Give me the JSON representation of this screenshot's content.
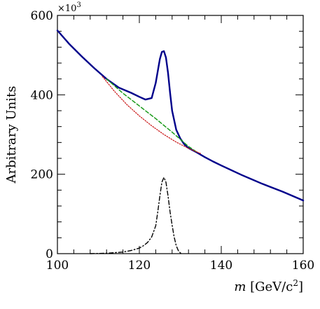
{
  "chart_data": {
    "type": "line",
    "title": "",
    "xlabel": {
      "prefix": "m",
      "units": "[GeV/c",
      "superscript": "2",
      "suffix": "]"
    },
    "ylabel": "Arbitrary Units",
    "y_multiplier": {
      "base": "×10",
      "exponent": "3"
    },
    "xlim": [
      100,
      160
    ],
    "ylim": [
      0,
      600
    ],
    "x_ticks": [
      100,
      120,
      140,
      160
    ],
    "y_ticks": [
      0,
      200,
      400,
      600
    ],
    "x_tick_labels": [
      "100",
      "120",
      "140",
      "160"
    ],
    "y_tick_labels": [
      "0",
      "200",
      "400",
      "600"
    ],
    "grid": false,
    "legend": "none",
    "series": [
      {
        "style": "solid",
        "color": "#00008b",
        "x": [
          100,
          103,
          106,
          109,
          112,
          115,
          118,
          120,
          121.5,
          123,
          124,
          125,
          125.5,
          126,
          126.5,
          127,
          127.5,
          128,
          129,
          130,
          131,
          132,
          134,
          136,
          138,
          140,
          145,
          150,
          155,
          160
        ],
        "y": [
          562,
          527,
          496,
          467,
          440,
          418,
          405,
          395,
          388,
          392,
          430,
          490,
          508,
          510,
          494,
          455,
          405,
          360,
          312,
          290,
          275,
          266,
          255,
          243,
          232,
          222,
          198,
          176,
          156,
          134
        ]
      },
      {
        "style": "dashed",
        "color": "#1a9a1a",
        "x": [
          112,
          114,
          116,
          118,
          120,
          122,
          124,
          126,
          128,
          130,
          132,
          134
        ],
        "y": [
          440,
          422,
          404,
          388,
          372,
          356,
          340,
          323,
          306,
          288,
          270,
          256
        ]
      },
      {
        "style": "dotted",
        "color": "#cc2222",
        "x": [
          111,
          114,
          117,
          120,
          123,
          126,
          129,
          132,
          135
        ],
        "y": [
          446,
          408,
          375,
          347,
          322,
          300,
          281,
          265,
          252
        ]
      },
      {
        "style": "dash-dot",
        "color": "#000000",
        "x": [
          108,
          112,
          116,
          118,
          120,
          121,
          122,
          123,
          124,
          124.5,
          125,
          125.5,
          126,
          126.5,
          127,
          127.5,
          128,
          128.5,
          129,
          129.5,
          130,
          130.5
        ],
        "y": [
          0,
          1,
          4,
          8,
          14,
          20,
          28,
          42,
          70,
          105,
          145,
          180,
          192,
          180,
          145,
          105,
          72,
          42,
          20,
          8,
          2,
          0
        ]
      }
    ]
  }
}
